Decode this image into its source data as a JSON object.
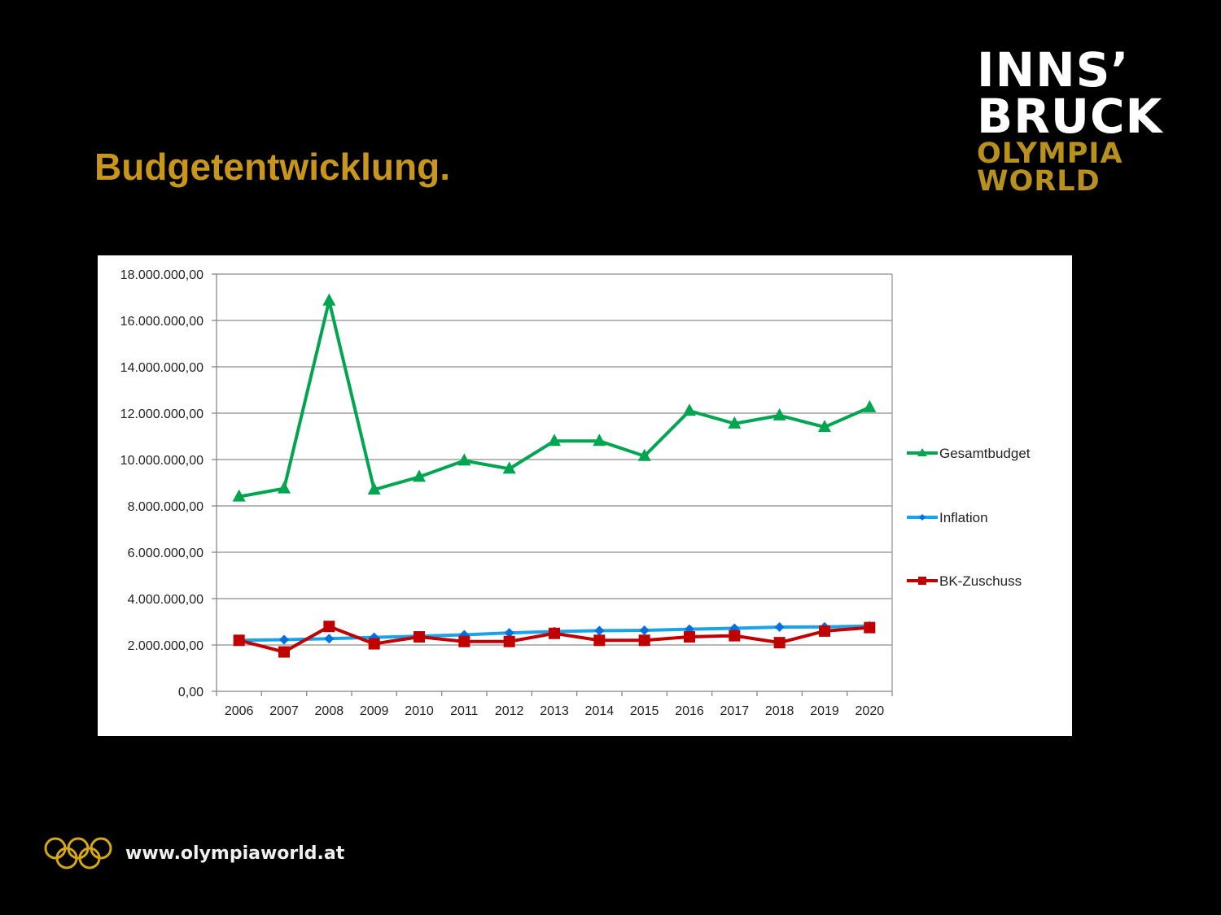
{
  "slide": {
    "title": "Budgetentwicklung.",
    "logo_lines": [
      "INNS’",
      "BRUCK",
      "OLYMPIA",
      "WORLD"
    ],
    "footer_url": "www.olympiaworld.at",
    "colors": {
      "title": "#c8961a",
      "logo_gold": "#b8901e",
      "background": "#000000"
    }
  },
  "chart_data": {
    "type": "line",
    "title": "",
    "xlabel": "",
    "ylabel": "",
    "x": [
      "2006",
      "2007",
      "2008",
      "2009",
      "2010",
      "2011",
      "2012",
      "2013",
      "2014",
      "2015",
      "2016",
      "2017",
      "2018",
      "2019",
      "2020"
    ],
    "ylim": [
      0,
      18000000
    ],
    "yticks": [
      0,
      2000000,
      4000000,
      6000000,
      8000000,
      10000000,
      12000000,
      14000000,
      16000000,
      18000000
    ],
    "ytick_labels": [
      "0,00",
      "2.000.000,00",
      "4.000.000,00",
      "6.000.000,00",
      "8.000.000,00",
      "10.000.000,00",
      "12.000.000,00",
      "14.000.000,00",
      "16.000.000,00",
      "18.000.000,00"
    ],
    "grid": true,
    "legend_position": "right",
    "series": [
      {
        "name": "Gesamtbudget",
        "color": "#00a550",
        "marker": "triangle",
        "values": [
          8400000,
          8750000,
          16850000,
          8700000,
          9250000,
          9950000,
          9600000,
          10800000,
          10800000,
          10150000,
          12100000,
          11550000,
          11900000,
          11400000,
          12250000
        ]
      },
      {
        "name": "Inflation",
        "color": "#1aa3e8",
        "marker_color": "#0070e0",
        "marker": "diamond",
        "values": [
          2200000,
          2230000,
          2270000,
          2330000,
          2380000,
          2440000,
          2520000,
          2580000,
          2620000,
          2630000,
          2680000,
          2720000,
          2770000,
          2780000,
          2820000
        ]
      },
      {
        "name": "BK-Zuschuss",
        "color": "#c00000",
        "marker": "square",
        "values": [
          2200000,
          1700000,
          2800000,
          2050000,
          2350000,
          2150000,
          2150000,
          2500000,
          2200000,
          2200000,
          2350000,
          2400000,
          2100000,
          2600000,
          2750000
        ]
      }
    ]
  }
}
